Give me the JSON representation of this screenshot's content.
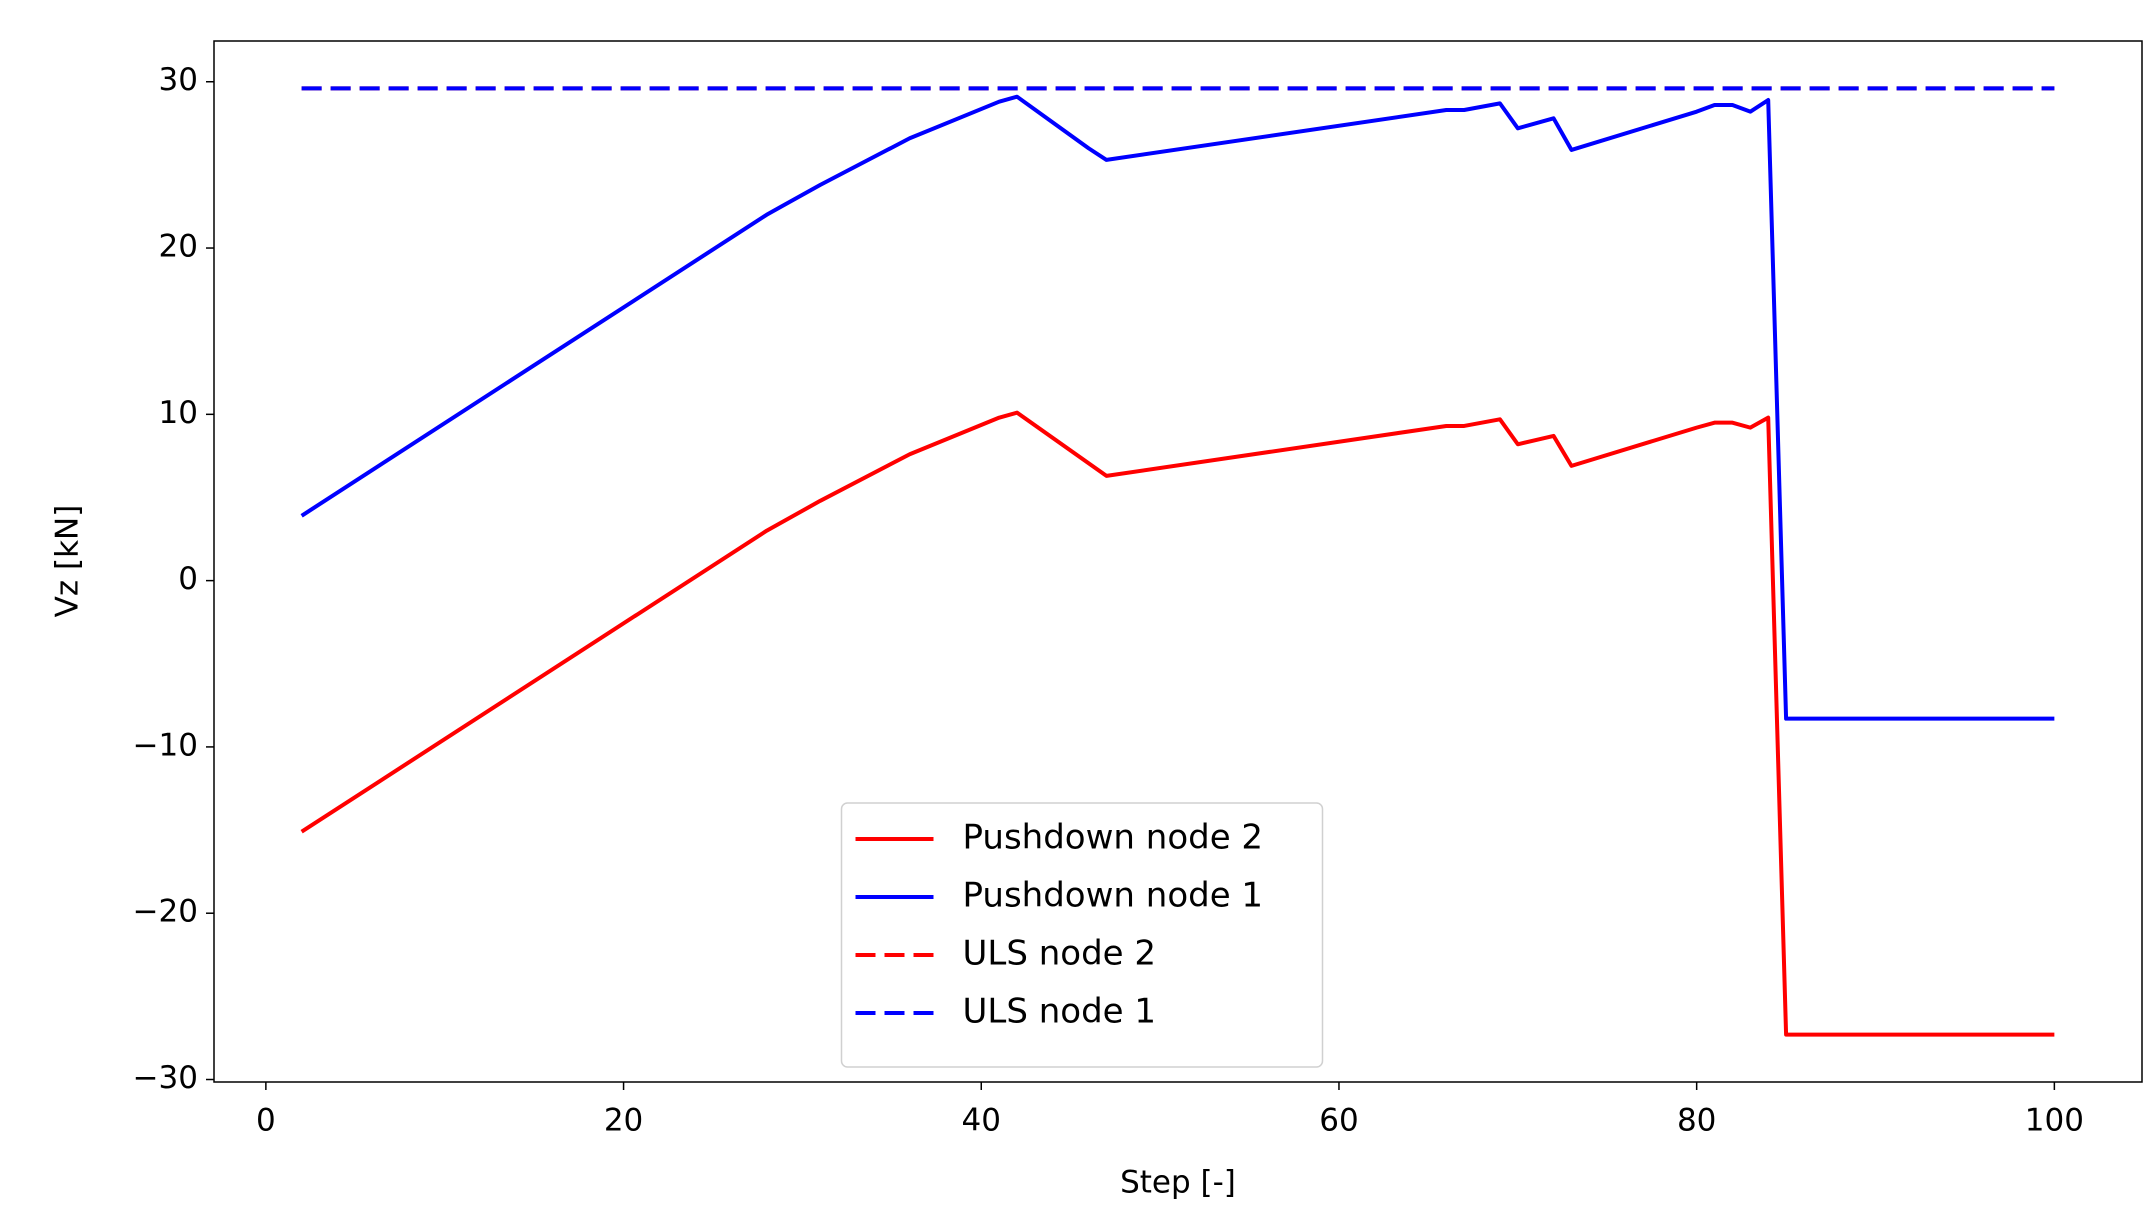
{
  "chart_data": {
    "type": "line",
    "xlabel": "Step [-]",
    "ylabel": "Vz [kN]",
    "xlim": [
      -2.9,
      104.9
    ],
    "xticks": [
      0,
      20,
      40,
      60,
      80,
      100
    ],
    "ylim": [
      -30.15,
      32.45
    ],
    "yticks": [
      {
        "value": -30,
        "label": "−30"
      },
      {
        "value": -20,
        "label": "−20"
      },
      {
        "value": -10,
        "label": "−10"
      },
      0,
      10,
      20,
      30
    ],
    "legend": "lower center",
    "grid": false,
    "series": [
      {
        "name": "Pushdown node 2",
        "color": "#ff0000",
        "dash": "solid",
        "x": [
          2,
          28,
          29,
          31,
          36,
          41,
          42,
          47,
          66,
          67,
          69,
          70,
          72,
          73,
          80,
          81,
          82,
          83,
          84,
          85,
          100
        ],
        "values": [
          -15.1,
          3.0,
          3.6,
          4.8,
          7.6,
          9.8,
          10.1,
          6.3,
          9.3,
          9.3,
          9.7,
          8.2,
          8.7,
          6.9,
          9.2,
          9.5,
          9.5,
          9.2,
          9.8,
          -27.3,
          -27.3
        ]
      },
      {
        "name": "Pushdown node 1",
        "color": "#0000ff",
        "dash": "solid",
        "x": [
          2,
          28,
          29,
          31,
          36,
          41,
          42,
          46,
          47,
          66,
          67,
          69,
          70,
          72,
          73,
          80,
          81,
          82,
          83,
          84,
          85,
          100
        ],
        "values": [
          3.9,
          22.0,
          22.6,
          23.8,
          26.6,
          28.8,
          29.1,
          26.0,
          25.3,
          28.3,
          28.3,
          28.7,
          27.2,
          27.8,
          25.9,
          28.2,
          28.6,
          28.6,
          28.2,
          28.9,
          -8.3,
          -8.3
        ]
      },
      {
        "name": "ULS node 2",
        "color": "#ff0000",
        "dash": "dashed",
        "x": [
          2,
          100
        ],
        "values": [
          29.6,
          29.6
        ]
      },
      {
        "name": "ULS node 1",
        "color": "#0000ff",
        "dash": "dashed",
        "x": [
          2,
          100
        ],
        "values": [
          29.6,
          29.6
        ]
      }
    ]
  }
}
